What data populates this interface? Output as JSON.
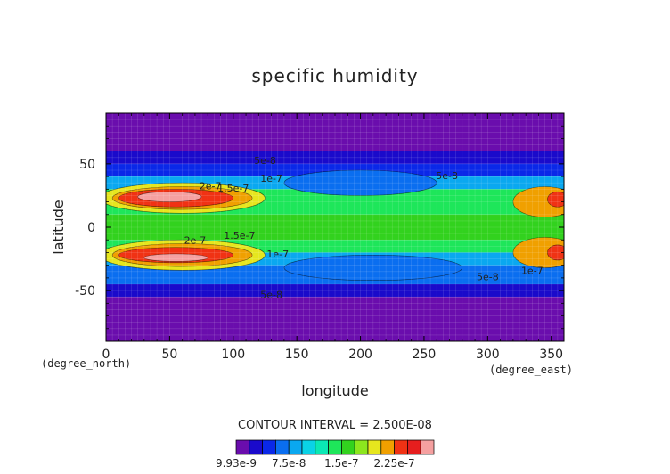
{
  "chart_data": {
    "type": "heatmap",
    "title": "specific humidity",
    "xlabel": "longitude",
    "ylabel": "latitude",
    "x_unit": "(degree_east)",
    "y_unit": "(degree_north)",
    "xlim": [
      0,
      360
    ],
    "ylim": [
      -90,
      90
    ],
    "x_ticks": [
      0,
      50,
      100,
      150,
      200,
      250,
      300,
      350
    ],
    "y_ticks": [
      -50,
      0,
      50
    ],
    "contour_interval_text": "CONTOUR INTERVAL = 2.500E-08",
    "contour_labels": [
      {
        "text": "5e-8",
        "lon": 125,
        "lat": 50
      },
      {
        "text": "1e-7",
        "lon": 130,
        "lat": 36
      },
      {
        "text": "5e-8",
        "lon": 268,
        "lat": 38
      },
      {
        "text": "2e-7",
        "lon": 82,
        "lat": 30
      },
      {
        "text": "1.5e-7",
        "lon": 100,
        "lat": 28
      },
      {
        "text": "2e-7",
        "lon": 70,
        "lat": -13
      },
      {
        "text": "1.5e-7",
        "lon": 105,
        "lat": -9
      },
      {
        "text": "1e-7",
        "lon": 135,
        "lat": -24
      },
      {
        "text": "5e-8",
        "lon": 300,
        "lat": -42
      },
      {
        "text": "1e-7",
        "lon": 335,
        "lat": -37
      },
      {
        "text": "5e-8",
        "lon": 130,
        "lat": -56
      }
    ],
    "colorbar": {
      "colors": [
        "#6a0dad",
        "#1a0acb",
        "#0a28e8",
        "#0a6ef0",
        "#0aa8f0",
        "#0ad2e6",
        "#0ae8b4",
        "#1ee65a",
        "#32d21e",
        "#8ce61e",
        "#e6e61e",
        "#f0a000",
        "#f03214",
        "#e61e1e",
        "#f5a0a0"
      ],
      "tick_labels": [
        "9.93e-9",
        "7.5e-8",
        "1.5e-7",
        "2.25e-7"
      ]
    },
    "bands": [
      {
        "lat_from": 90,
        "lat_to": 60,
        "color": "#6a0dad"
      },
      {
        "lat_from": 60,
        "lat_to": 50,
        "color": "#1a0acb"
      },
      {
        "lat_from": 50,
        "lat_to": 40,
        "color": "#0a28e8"
      },
      {
        "lat_from": 40,
        "lat_to": 30,
        "color": "#0aa8f0"
      },
      {
        "lat_from": 30,
        "lat_to": 10,
        "color": "#1ee65a"
      },
      {
        "lat_from": 10,
        "lat_to": -10,
        "color": "#32d21e"
      },
      {
        "lat_from": -10,
        "lat_to": -20,
        "color": "#1ee65a"
      },
      {
        "lat_from": -20,
        "lat_to": -30,
        "color": "#0aa8f0"
      },
      {
        "lat_from": -30,
        "lat_to": -45,
        "color": "#0a6ef0"
      },
      {
        "lat_from": -45,
        "lat_to": -55,
        "color": "#1a0acb"
      },
      {
        "lat_from": -55,
        "lat_to": -90,
        "color": "#6a0dad"
      }
    ],
    "blobs": [
      {
        "lon": 60,
        "lat": 23,
        "rlon": 65,
        "rlat": 12,
        "color": "#e6e61e"
      },
      {
        "lon": 60,
        "lat": 23,
        "rlon": 55,
        "rlat": 9,
        "color": "#f0a000"
      },
      {
        "lon": 55,
        "lat": 23,
        "rlon": 45,
        "rlat": 7,
        "color": "#f03214"
      },
      {
        "lon": 50,
        "lat": 24,
        "rlon": 25,
        "rlat": 4,
        "color": "#f5a0a0"
      },
      {
        "lon": 60,
        "lat": -22,
        "rlon": 65,
        "rlat": 12,
        "color": "#e6e61e"
      },
      {
        "lon": 60,
        "lat": -22,
        "rlon": 55,
        "rlat": 9,
        "color": "#f0a000"
      },
      {
        "lon": 55,
        "lat": -22,
        "rlon": 45,
        "rlat": 6,
        "color": "#f03214"
      },
      {
        "lon": 55,
        "lat": -24,
        "rlon": 25,
        "rlat": 3,
        "color": "#f5a0a0"
      },
      {
        "lon": 200,
        "lat": 35,
        "rlon": 60,
        "rlat": 10,
        "color": "#0a6ef0"
      },
      {
        "lon": 210,
        "lat": -32,
        "rlon": 70,
        "rlat": 10,
        "color": "#0a6ef0"
      },
      {
        "lon": 345,
        "lat": 20,
        "rlon": 25,
        "rlat": 12,
        "color": "#f0a000"
      },
      {
        "lon": 355,
        "lat": 22,
        "rlon": 8,
        "rlat": 6,
        "color": "#f03214"
      },
      {
        "lon": 345,
        "lat": -20,
        "rlon": 25,
        "rlat": 12,
        "color": "#f0a000"
      },
      {
        "lon": 355,
        "lat": -20,
        "rlon": 8,
        "rlat": 6,
        "color": "#f03214"
      }
    ]
  }
}
